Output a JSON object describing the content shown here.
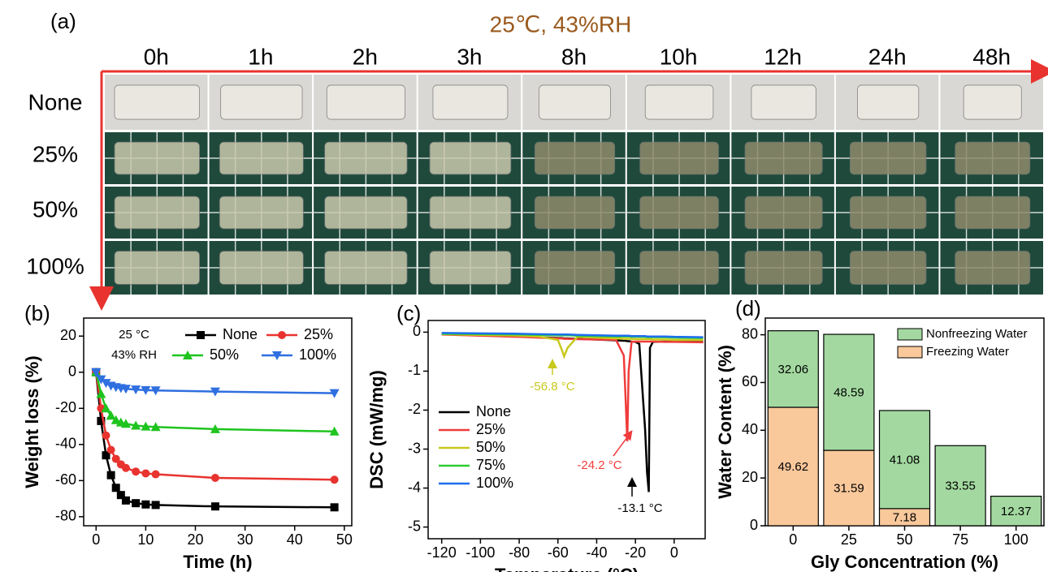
{
  "panel_a": {
    "label": "(a)",
    "title": "25℃, 43%RH",
    "columns": [
      "0h",
      "1h",
      "2h",
      "3h",
      "8h",
      "10h",
      "12h",
      "24h",
      "48h"
    ],
    "rows": [
      "None",
      "25%",
      "50%",
      "100%"
    ]
  },
  "chart_data": [
    {
      "type": "line",
      "panel_label": "(b)",
      "x_label": "Time (h)",
      "y_label": "Weight loss (%)",
      "annotations": [
        "25 °C",
        "43% RH"
      ],
      "x": [
        0,
        1,
        2,
        3,
        4,
        5,
        6,
        8,
        10,
        12,
        24,
        48
      ],
      "series": [
        {
          "name": "None",
          "color": "#000000",
          "marker": "square",
          "values": [
            0,
            -27,
            -46,
            -57,
            -64,
            -68,
            -71,
            -72.5,
            -73.2,
            -73.5,
            -74.3,
            -74.8
          ]
        },
        {
          "name": "25%",
          "color": "#e8332f",
          "marker": "circle",
          "values": [
            0,
            -20,
            -35,
            -43,
            -48,
            -51,
            -53,
            -55,
            -56,
            -56.5,
            -58.5,
            -59.5
          ]
        },
        {
          "name": "50%",
          "color": "#1fc41f",
          "marker": "triangle-up",
          "values": [
            0,
            -12,
            -20,
            -24,
            -26.5,
            -27.8,
            -28.5,
            -29.5,
            -30,
            -30.3,
            -31.5,
            -32.8
          ]
        },
        {
          "name": "100%",
          "color": "#2f6fe0",
          "marker": "triangle-down",
          "values": [
            0,
            -4,
            -6,
            -7.5,
            -8.3,
            -8.8,
            -9.2,
            -9.6,
            -9.9,
            -10.1,
            -10.7,
            -11.6
          ]
        }
      ],
      "xlim": [
        -2.5,
        51.5
      ],
      "xticks": [
        0,
        10,
        20,
        30,
        40,
        50
      ],
      "ylim": [
        -85,
        30
      ],
      "yticks": [
        20,
        0,
        -20,
        -40,
        -60,
        -80
      ]
    },
    {
      "type": "line",
      "panel_label": "(c)",
      "x_label": "Temperature (°C)",
      "y_label": "DSC (mW/mg)",
      "annotations": [
        "-56.8 °C",
        "-24.2 °C",
        "-13.1 °C"
      ],
      "x": [
        -120,
        -100,
        -80,
        -70,
        -60,
        -58,
        -56.8,
        -55,
        -50,
        -40,
        -30,
        -26,
        -25,
        -24.2,
        -23.5,
        -22,
        -20,
        -18,
        -15,
        -14,
        -13.1,
        -12.5,
        -11,
        -5,
        0,
        15
      ],
      "series": [
        {
          "name": "None",
          "color": "#000000",
          "values": [
            -0.05,
            -0.08,
            -0.11,
            -0.13,
            -0.15,
            -0.15,
            -0.16,
            -0.16,
            -0.17,
            -0.19,
            -0.21,
            -0.22,
            -0.22,
            -0.23,
            -0.23,
            -0.24,
            -0.25,
            -0.3,
            -2.5,
            -3.6,
            -4.1,
            -0.4,
            -0.25,
            -0.24,
            -0.24,
            -0.25
          ]
        },
        {
          "name": "25%",
          "color": "#f03c3c",
          "values": [
            -0.06,
            -0.09,
            -0.12,
            -0.14,
            -0.16,
            -0.16,
            -0.17,
            -0.17,
            -0.18,
            -0.19,
            -0.2,
            -0.6,
            -1.8,
            -2.8,
            -1.0,
            -0.25,
            -0.24,
            -0.24,
            -0.24,
            -0.24,
            -0.24,
            -0.24,
            -0.24,
            -0.25,
            -0.25,
            -0.26
          ]
        },
        {
          "name": "50%",
          "color": "#c8c81e",
          "values": [
            -0.05,
            -0.07,
            -0.09,
            -0.11,
            -0.2,
            -0.45,
            -0.62,
            -0.4,
            -0.12,
            -0.14,
            -0.16,
            -0.17,
            -0.17,
            -0.17,
            -0.17,
            -0.17,
            -0.18,
            -0.18,
            -0.18,
            -0.18,
            -0.18,
            -0.18,
            -0.19,
            -0.19,
            -0.2,
            -0.2
          ]
        },
        {
          "name": "75%",
          "color": "#2ecc2e",
          "values": [
            -0.04,
            -0.05,
            -0.06,
            -0.07,
            -0.08,
            -0.08,
            -0.08,
            -0.08,
            -0.09,
            -0.1,
            -0.11,
            -0.11,
            -0.11,
            -0.11,
            -0.11,
            -0.12,
            -0.12,
            -0.12,
            -0.12,
            -0.13,
            -0.13,
            -0.13,
            -0.13,
            -0.13,
            -0.14,
            -0.15
          ]
        },
        {
          "name": "100%",
          "color": "#1e6ef0",
          "values": [
            -0.02,
            -0.03,
            -0.04,
            -0.05,
            -0.06,
            -0.06,
            -0.06,
            -0.06,
            -0.07,
            -0.08,
            -0.09,
            -0.09,
            -0.09,
            -0.09,
            -0.09,
            -0.1,
            -0.1,
            -0.1,
            -0.1,
            -0.11,
            -0.11,
            -0.11,
            -0.11,
            -0.11,
            -0.12,
            -0.13
          ]
        }
      ],
      "xlim": [
        -127,
        16
      ],
      "xticks": [
        -120,
        -100,
        -80,
        -60,
        -40,
        -20,
        0
      ],
      "ylim": [
        -5.3,
        0.3
      ],
      "yticks": [
        0,
        -1,
        -2,
        -3,
        -4,
        -5
      ]
    },
    {
      "type": "stacked-bar",
      "panel_label": "(d)",
      "x_label": "Gly Concentration (%)",
      "y_label": "Water Content (%)",
      "categories": [
        "0",
        "25",
        "50",
        "75",
        "100"
      ],
      "series": [
        {
          "name": "Freezing Water",
          "color": "#f9c89b",
          "values": [
            49.62,
            31.59,
            7.18,
            null,
            null
          ]
        },
        {
          "name": "Nonfreezing Water",
          "color": "#a3d9a0",
          "values": [
            32.06,
            48.59,
            41.08,
            33.55,
            12.37
          ]
        }
      ],
      "ylim": [
        0,
        87
      ],
      "yticks": [
        0,
        20,
        40,
        60,
        80
      ]
    }
  ]
}
